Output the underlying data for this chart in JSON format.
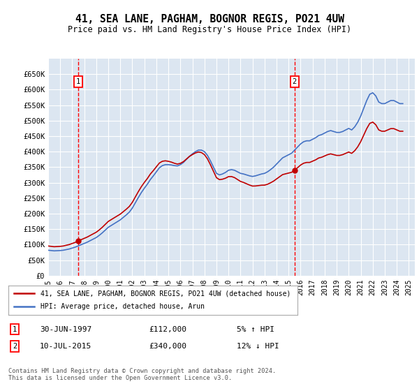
{
  "title": "41, SEA LANE, PAGHAM, BOGNOR REGIS, PO21 4UW",
  "subtitle": "Price paid vs. HM Land Registry's House Price Index (HPI)",
  "bg_color": "#dce6f1",
  "grid_color": "#ffffff",
  "red_line_color": "#c00000",
  "blue_line_color": "#4472c4",
  "vline_color": "#ff0000",
  "ytick_labels": [
    "£0",
    "£50K",
    "£100K",
    "£150K",
    "£200K",
    "£250K",
    "£300K",
    "£350K",
    "£400K",
    "£450K",
    "£500K",
    "£550K",
    "£600K",
    "£650K"
  ],
  "yticks": [
    0,
    50000,
    100000,
    150000,
    200000,
    250000,
    300000,
    350000,
    400000,
    450000,
    500000,
    550000,
    600000,
    650000
  ],
  "ylim": [
    0,
    700000
  ],
  "legend1": "41, SEA LANE, PAGHAM, BOGNOR REGIS, PO21 4UW (detached house)",
  "legend2": "HPI: Average price, detached house, Arun",
  "annotation1_label": "1",
  "annotation1_date": "30-JUN-1997",
  "annotation1_price": "£112,000",
  "annotation1_hpi": "5% ↑ HPI",
  "annotation2_label": "2",
  "annotation2_date": "10-JUL-2015",
  "annotation2_price": "£340,000",
  "annotation2_hpi": "12% ↓ HPI",
  "footer": "Contains HM Land Registry data © Crown copyright and database right 2024.\nThis data is licensed under the Open Government Licence v3.0.",
  "hpi_data_x": [
    1995.0,
    1995.25,
    1995.5,
    1995.75,
    1996.0,
    1996.25,
    1996.5,
    1996.75,
    1997.0,
    1997.25,
    1997.5,
    1997.75,
    1998.0,
    1998.25,
    1998.5,
    1998.75,
    1999.0,
    1999.25,
    1999.5,
    1999.75,
    2000.0,
    2000.25,
    2000.5,
    2000.75,
    2001.0,
    2001.25,
    2001.5,
    2001.75,
    2002.0,
    2002.25,
    2002.5,
    2002.75,
    2003.0,
    2003.25,
    2003.5,
    2003.75,
    2004.0,
    2004.25,
    2004.5,
    2004.75,
    2005.0,
    2005.25,
    2005.5,
    2005.75,
    2006.0,
    2006.25,
    2006.5,
    2006.75,
    2007.0,
    2007.25,
    2007.5,
    2007.75,
    2008.0,
    2008.25,
    2008.5,
    2008.75,
    2009.0,
    2009.25,
    2009.5,
    2009.75,
    2010.0,
    2010.25,
    2010.5,
    2010.75,
    2011.0,
    2011.25,
    2011.5,
    2011.75,
    2012.0,
    2012.25,
    2012.5,
    2012.75,
    2013.0,
    2013.25,
    2013.5,
    2013.75,
    2014.0,
    2014.25,
    2014.5,
    2014.75,
    2015.0,
    2015.25,
    2015.5,
    2015.75,
    2016.0,
    2016.25,
    2016.5,
    2016.75,
    2017.0,
    2017.25,
    2017.5,
    2017.75,
    2018.0,
    2018.25,
    2018.5,
    2018.75,
    2019.0,
    2019.25,
    2019.5,
    2019.75,
    2020.0,
    2020.25,
    2020.5,
    2020.75,
    2021.0,
    2021.25,
    2021.5,
    2021.75,
    2022.0,
    2022.25,
    2022.5,
    2022.75,
    2023.0,
    2023.25,
    2023.5,
    2023.75,
    2024.0,
    2024.25,
    2024.5
  ],
  "hpi_data_y": [
    82000,
    81000,
    80000,
    80500,
    81000,
    82000,
    84000,
    86000,
    89000,
    92000,
    96000,
    100000,
    104000,
    108000,
    113000,
    118000,
    123000,
    130000,
    138000,
    147000,
    156000,
    162000,
    168000,
    174000,
    180000,
    188000,
    196000,
    205000,
    218000,
    235000,
    252000,
    268000,
    282000,
    295000,
    310000,
    322000,
    335000,
    348000,
    355000,
    358000,
    358000,
    357000,
    355000,
    354000,
    358000,
    365000,
    375000,
    385000,
    393000,
    400000,
    405000,
    405000,
    400000,
    388000,
    370000,
    350000,
    330000,
    325000,
    328000,
    333000,
    340000,
    342000,
    340000,
    335000,
    330000,
    328000,
    325000,
    322000,
    320000,
    322000,
    325000,
    328000,
    330000,
    335000,
    342000,
    350000,
    360000,
    370000,
    380000,
    385000,
    390000,
    395000,
    405000,
    415000,
    425000,
    432000,
    435000,
    435000,
    440000,
    445000,
    452000,
    455000,
    460000,
    465000,
    468000,
    465000,
    462000,
    462000,
    465000,
    470000,
    475000,
    470000,
    480000,
    495000,
    515000,
    540000,
    565000,
    585000,
    590000,
    580000,
    560000,
    555000,
    555000,
    560000,
    565000,
    565000,
    560000,
    555000,
    555000
  ],
  "sale1_x": 1997.5,
  "sale1_y": 112000,
  "sale2_x": 2015.5,
  "sale2_y": 340000,
  "xmin": 1995,
  "xmax": 2025.5,
  "xticks": [
    1995,
    1996,
    1997,
    1998,
    1999,
    2000,
    2001,
    2002,
    2003,
    2004,
    2005,
    2006,
    2007,
    2008,
    2009,
    2010,
    2011,
    2012,
    2013,
    2014,
    2015,
    2016,
    2017,
    2018,
    2019,
    2020,
    2021,
    2022,
    2023,
    2024,
    2025
  ]
}
